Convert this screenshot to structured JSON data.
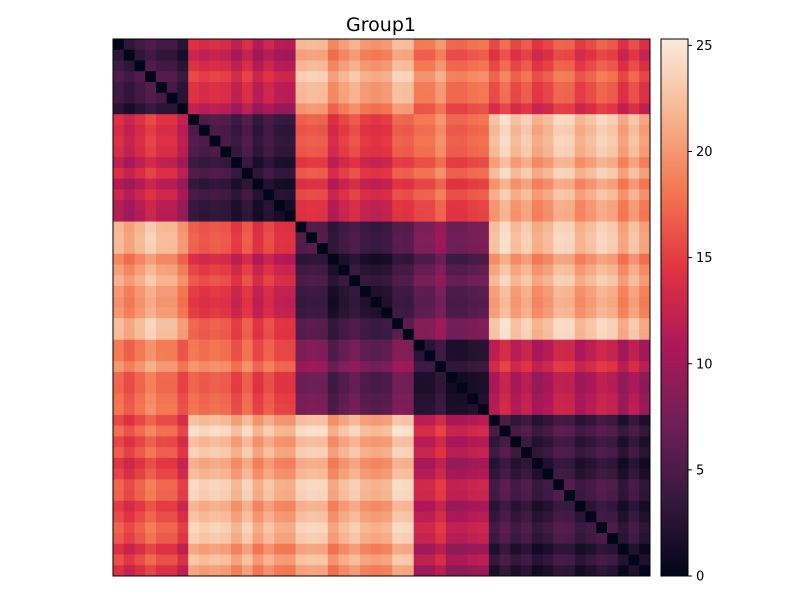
{
  "chart_data": {
    "type": "heatmap",
    "title": "Group1",
    "xlabel": "",
    "ylabel": "",
    "n": 50,
    "grid": false,
    "colorbar": {
      "min": 0,
      "max": 25.3,
      "ticks": [
        0,
        5,
        10,
        15,
        20,
        25
      ],
      "tick_labels": [
        "0",
        "5",
        "10",
        "15",
        "20",
        "25"
      ],
      "placement": "right"
    },
    "colormap": [
      "#03051a",
      "#36193e",
      "#701f57",
      "#ad1759",
      "#e13342",
      "#f37651",
      "#f6b48f",
      "#faebdd"
    ],
    "clusters": [
      {
        "start": 0,
        "end": 7
      },
      {
        "start": 7,
        "end": 17
      },
      {
        "start": 17,
        "end": 28
      },
      {
        "start": 28,
        "end": 35
      },
      {
        "start": 35,
        "end": 50
      }
    ],
    "cluster_distance": [
      [
        4,
        12,
        20,
        18,
        15
      ],
      [
        12,
        4,
        14,
        17,
        21
      ],
      [
        20,
        14,
        4,
        7,
        21
      ],
      [
        18,
        17,
        7,
        4,
        12
      ],
      [
        15,
        21,
        21,
        12,
        4
      ]
    ]
  }
}
